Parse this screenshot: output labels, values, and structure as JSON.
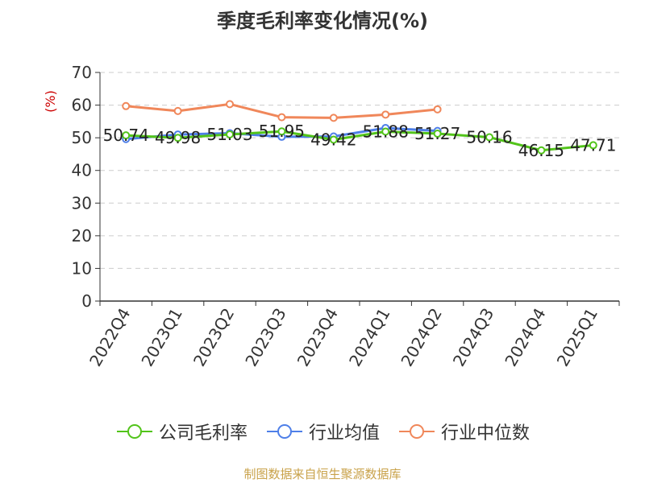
{
  "chart_data": {
    "type": "line",
    "title": "季度毛利率变化情况(%)",
    "ylabel": "(%)",
    "xlabel": "",
    "categories": [
      "2022Q4",
      "2023Q1",
      "2023Q2",
      "2023Q3",
      "2023Q4",
      "2024Q1",
      "2024Q2",
      "2024Q3",
      "2024Q4",
      "2025Q1"
    ],
    "ylim": [
      0,
      70
    ],
    "yticks": [
      0,
      10,
      20,
      30,
      40,
      50,
      60,
      70
    ],
    "grid": true,
    "legend_position": "bottom",
    "series": [
      {
        "name": "公司毛利率",
        "color": "#52c41a",
        "values": [
          50.74,
          49.98,
          51.03,
          51.95,
          49.42,
          51.88,
          51.27,
          50.16,
          46.15,
          47.71
        ],
        "labels": [
          "50.74",
          "49.98",
          "51.03",
          "51.95",
          "49.42",
          "51.88",
          "51.27",
          "50.16",
          "46.15",
          "47.71"
        ]
      },
      {
        "name": "行业均值",
        "color": "#4e7fe8",
        "values": [
          49.6,
          51.0,
          51.4,
          50.3,
          50.4,
          53.0,
          52.1,
          null,
          null,
          null
        ]
      },
      {
        "name": "行业中位数",
        "color": "#f0875a",
        "values": [
          59.7,
          58.2,
          60.3,
          56.3,
          56.1,
          57.1,
          58.7,
          null,
          null,
          null
        ]
      }
    ]
  },
  "source": "制图数据来自恒生聚源数据库"
}
